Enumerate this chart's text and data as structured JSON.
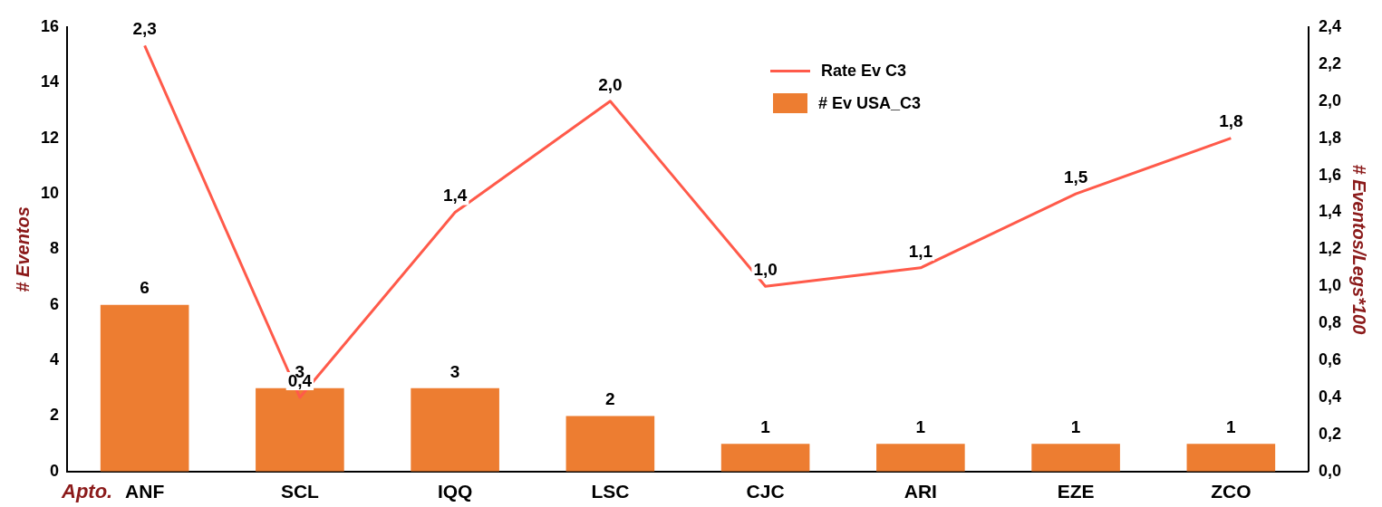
{
  "chart_data": {
    "type": "bar",
    "categories": [
      "ANF",
      "SCL",
      "IQQ",
      "LSC",
      "CJC",
      "ARI",
      "EZE",
      "ZCO"
    ],
    "xlabel": "Apto.",
    "ylabel": "# Eventos",
    "y2label": "# Eventos/Legs*100",
    "ylim": [
      0,
      16
    ],
    "yticks": [
      0,
      2,
      4,
      6,
      8,
      10,
      12,
      14,
      16
    ],
    "y2lim": [
      0,
      2.4
    ],
    "y2ticks": [
      {
        "value": 0,
        "label": "0,0"
      },
      {
        "value": 0.2,
        "label": "0,2"
      },
      {
        "value": 0.4,
        "label": "0,4"
      },
      {
        "value": 0.6,
        "label": "0,6"
      },
      {
        "value": 0.8,
        "label": "0,8"
      },
      {
        "value": 1,
        "label": "1,0"
      },
      {
        "value": 1.2,
        "label": "1,2"
      },
      {
        "value": 1.4,
        "label": "1,4"
      },
      {
        "value": 1.6,
        "label": "1,6"
      },
      {
        "value": 1.8,
        "label": "1,8"
      },
      {
        "value": 2,
        "label": "2,0"
      },
      {
        "value": 2.2,
        "label": "2,2"
      },
      {
        "value": 2.4,
        "label": "2,4"
      }
    ],
    "legend": "top",
    "series": [
      {
        "type": "line",
        "name": "Rate Ev C3",
        "color": "#ff5a4a",
        "axis": "y2",
        "values": [
          2.3,
          0.4,
          1.4,
          2.0,
          1.0,
          1.1,
          1.5,
          1.8
        ],
        "value_labels": [
          "2,3",
          "0,4",
          "1,4",
          "2,0",
          "1,0",
          "1,1",
          "1,5",
          "1,8"
        ]
      },
      {
        "name": "# Ev USA_C3",
        "color": "#ed7d31",
        "values": [
          6,
          3,
          3,
          2,
          1,
          1,
          1,
          1
        ],
        "value_labels": [
          "6",
          "3",
          "3",
          "2",
          "1",
          "1",
          "1",
          "1"
        ]
      }
    ]
  }
}
